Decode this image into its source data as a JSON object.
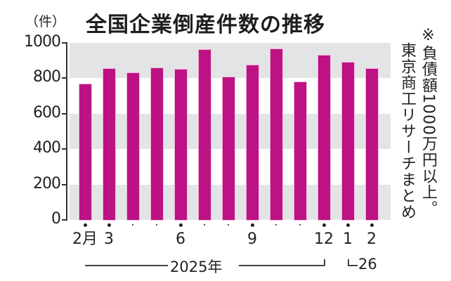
{
  "title": "全国企業倒産件数の推移",
  "unit_label": "（件）",
  "note": {
    "line1": "※負債額1000万円以上。",
    "line2": "東京商工リサーチまとめ"
  },
  "x_axis": {
    "labels": [
      "2月",
      "3",
      "",
      "",
      "6",
      "",
      "",
      "9",
      "",
      "",
      "12",
      "1",
      "2"
    ],
    "year_2025": "2025年",
    "year_2026": "26"
  },
  "y_axis": {
    "ticks": [
      "1000",
      "800",
      "600",
      "400",
      "200",
      "0"
    ]
  },
  "colors": {
    "bar": "#bc1283",
    "band": "#e3e4e5"
  },
  "chart_data": {
    "type": "bar",
    "title": "全国企業倒産件数の推移",
    "xlabel": "",
    "ylabel": "件",
    "categories": [
      "2025-02",
      "2025-03",
      "2025-04",
      "2025-05",
      "2025-06",
      "2025-07",
      "2025-08",
      "2025-09",
      "2025-10",
      "2025-11",
      "2025-12",
      "2026-01",
      "2026-02"
    ],
    "tick_labels": [
      "2月",
      "3",
      "",
      "",
      "6",
      "",
      "",
      "9",
      "",
      "",
      "12",
      "1",
      "2"
    ],
    "values": [
      766,
      853,
      829,
      857,
      849,
      960,
      806,
      873,
      964,
      778,
      929,
      889,
      853
    ],
    "ylim": [
      0,
      1000
    ],
    "yticks": [
      0,
      200,
      400,
      600,
      800,
      1000
    ],
    "grid": "alternating horizontal bands",
    "annotations": [
      "※負債額1000万円以上。",
      "東京商工リサーチまとめ",
      "2025年",
      "26"
    ]
  }
}
